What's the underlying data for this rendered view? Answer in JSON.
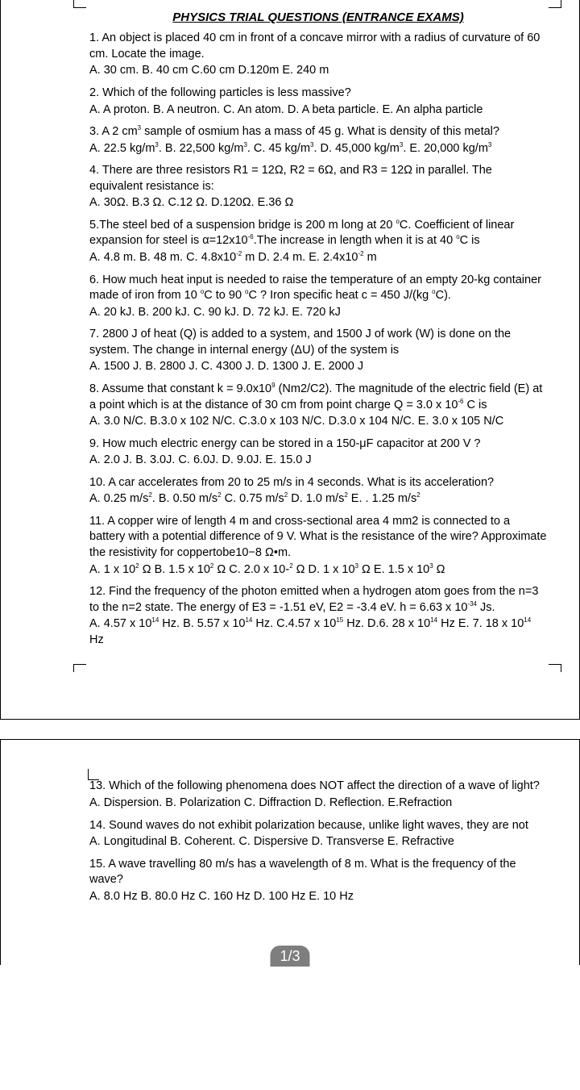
{
  "header": {
    "title": "PHYSICS TRIAL QUESTIONS (ENTRANCE EXAMS)"
  },
  "pager": {
    "label": "1/3"
  },
  "questions": {
    "q1": {
      "text": "1. An object is placed 40 cm in front of a concave mirror with a radius of curvature of 60 cm. Locate the image.",
      "ans": "A. 30 cm.  B. 40 cm   C.60 cm  D.120m  E. 240 m"
    },
    "q2": {
      "text": "2. Which of the following particles is less massive?",
      "ans": "A. A proton. B. A neutron. C. An atom. D. A beta particle.  E. An alpha particle"
    },
    "q3": {
      "t1": "3. A 2 cm",
      "t2": " sample of osmium has a mass of 45 g. What is density of this metal?",
      "a1": "A. 22.5 kg/m",
      "a2": ". B. 22,500 kg/m",
      "a3": ". C. 45 kg/m",
      "a4": ". D. 45,000 kg/m",
      "a5": ". E. 20,000 kg/m"
    },
    "q4": {
      "text": "4. There are three resistors R1 = 12Ω, R2 = 6Ω, and R3 = 12Ω in parallel. The equivalent resistance is:",
      "ans": "A. 30Ω.   B.3 Ω.   C.12 Ω.  D.120Ω.  E.36 Ω"
    },
    "q5": {
      "t1": "5.The steel bed of a suspension bridge is 200 m long at 20 ",
      "t2": "C. Coefficient of linear expansion for steel is α=12x10",
      "t3": ".The increase in length when it is at 40 ",
      "t4": "C is",
      "a1": "A. 4.8 m.  B. 48 m.   C. 4.8x10",
      "a2": " m  D. 2.4 m.   E. 2.4x10",
      "a3": " m"
    },
    "q6": {
      "t1": "6. How much heat input is needed to raise the temperature of an empty 20-kg container made of iron from 10 ",
      "t2": "C to 90 ",
      "t3": "C ? Iron specific heat c = 450 J/(kg ",
      "t4": "C).",
      "ans": "A. 20 kJ.  B. 200 kJ.  C. 90 kJ.  D. 72 kJ.  E. 720 kJ"
    },
    "q7": {
      "text": "7. 2800 J of heat (Q) is added to a system, and 1500 J of work (W) is done on the system. The change in internal energy (ΔU) of the system is",
      "ans": "A. 1500 J. B. 2800 J.  C. 4300 J.  D. 1300 J.  E. 2000 J"
    },
    "q8": {
      "t1": "8. Assume that constant k = 9.0x10",
      "t2": " (Nm2/C2). The magnitude of the electric field (E) at a point which is at the distance of 30 cm from point charge Q = 3.0 x 10",
      "t3": " C is",
      "ans": "A. 3.0 N/C.  B.3.0 x 102 N/C.  C.3.0 x 103 N/C.   D.3.0 x 104 N/C.   E. 3.0 x 105 N/C"
    },
    "q9": {
      "text": "9. How much electric energy can be stored in a 150-μF capacitor at 200 V ?",
      "ans": "A. 2.0 J.  B. 3.0J.   C. 6.0J.   D. 9.0J.   E. 15.0 J"
    },
    "q10": {
      "text": "10. A car accelerates from 20 to 25 m/s in 4 seconds. What is its acceleration?",
      "a1": "A. 0.25 m/s",
      "a2": ".  B. 0.50 m/s",
      "a3": "   C. 0.75 m/s",
      "a4": "   D. 1.0 m/s",
      "a5": " E.  . 1.25 m/s"
    },
    "q11": {
      "text": "11. A copper wire of length 4 m and cross-sectional area 4 mm2 is connected to a battery with a potential difference of 9 V. What is the resistance of the wire? Approximate the resistivity for coppertobe10−8 Ω•m.",
      "a1": "A. 1 x 10",
      "a2": " Ω   B. 1.5 x 10",
      "a3": " Ω   C. 2.0 x 10-",
      "a4": " Ω   D. 1 x 10",
      "a5": " Ω   E. 1.5 x 10",
      "a6": " Ω"
    },
    "q12": {
      "t1": "12. Find the frequency of the photon emitted when a hydrogen atom goes from the n=3 to the n=2 state. The energy of E3 = -1.51 eV, E2 = -3.4 eV. h = 6.63 x 10",
      "t2": " Js.",
      "a1": "A. 4.57 x 10",
      "a2": " Hz.   B. 5.57 x 10",
      "a3": " Hz.  C.4.57 x 10",
      "a4": " Hz.   D.6. 28 x 10",
      "a5": " Hz     E. 7. 18 x 10",
      "a6": " Hz"
    },
    "q13": {
      "text": "13. Which of the following phenomena does NOT affect the direction of a wave of light?",
      "ans": "A. Dispersion.   B. Polarization    C. Diffraction    D. Reflection.   E.Refraction"
    },
    "q14": {
      "text": "14. Sound waves do not exhibit polarization because, unlike light waves, they are not",
      "ans": "A. Longitudinal   B. Coherent. C. Dispersive    D. Transverse   E. Refractive"
    },
    "q15": {
      "text": "15. A wave travelling 80 m/s has a wavelength of 8 m. What is the frequency of the wave?",
      "ans": "A. 8.0 Hz   B. 80.0 Hz   C. 160 Hz   D. 100 Hz   E. 10 Hz"
    }
  },
  "sup": {
    "s2": "2",
    "s3": "3",
    "s6": "-6",
    "s9": "9",
    "s14": "14",
    "s15": "15",
    "s34": "-34",
    "sdeg": "o",
    "sn2": "-2"
  }
}
